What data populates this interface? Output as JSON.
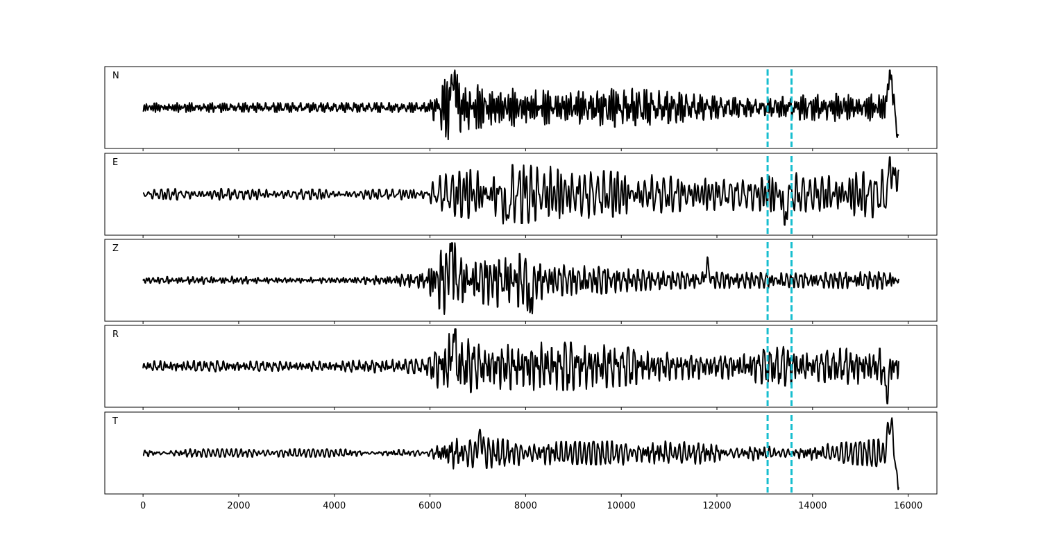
{
  "chart_data": {
    "type": "line",
    "title": "",
    "xlabel": "",
    "ylabel": "",
    "xlim": [
      -800,
      16600
    ],
    "x_ticks": [
      0,
      2000,
      4000,
      6000,
      8000,
      10000,
      12000,
      14000,
      16000
    ],
    "x_tick_labels": [
      "0",
      "2000",
      "4000",
      "6000",
      "8000",
      "10000",
      "12000",
      "14000",
      "16000"
    ],
    "sample_count": 15800,
    "grid": false,
    "legend": "none",
    "trace_color": "#000000",
    "pick_color": "#17becf",
    "picks": [
      13060,
      13560
    ],
    "channels": [
      {
        "name": "N",
        "envelope": [
          [
            0,
            0.12
          ],
          [
            1000,
            0.12
          ],
          [
            2000,
            0.12
          ],
          [
            3000,
            0.12
          ],
          [
            4000,
            0.12
          ],
          [
            5000,
            0.12
          ],
          [
            5900,
            0.12
          ],
          [
            6100,
            0.35
          ],
          [
            6400,
            0.85
          ],
          [
            6800,
            0.6
          ],
          [
            7500,
            0.5
          ],
          [
            8000,
            0.45
          ],
          [
            9000,
            0.4
          ],
          [
            10000,
            0.5
          ],
          [
            11000,
            0.4
          ],
          [
            12000,
            0.28
          ],
          [
            12500,
            0.24
          ],
          [
            13000,
            0.2
          ],
          [
            13500,
            0.3
          ],
          [
            14000,
            0.32
          ],
          [
            14500,
            0.35
          ],
          [
            15000,
            0.32
          ],
          [
            15400,
            0.35
          ],
          [
            15800,
            0.35
          ]
        ],
        "events": [
          [
            6500,
            0.9,
            60
          ],
          [
            15620,
            0.9,
            60
          ],
          [
            15780,
            -0.8,
            40
          ]
        ]
      },
      {
        "name": "E",
        "envelope": [
          [
            0,
            0.1
          ],
          [
            1000,
            0.16
          ],
          [
            2000,
            0.13
          ],
          [
            3000,
            0.13
          ],
          [
            4000,
            0.12
          ],
          [
            5000,
            0.12
          ],
          [
            5900,
            0.15
          ],
          [
            6200,
            0.5
          ],
          [
            6800,
            0.6
          ],
          [
            7500,
            0.75
          ],
          [
            8500,
            0.7
          ],
          [
            9500,
            0.6
          ],
          [
            10500,
            0.5
          ],
          [
            11500,
            0.4
          ],
          [
            12500,
            0.4
          ],
          [
            13000,
            0.42
          ],
          [
            13500,
            0.6
          ],
          [
            14000,
            0.4
          ],
          [
            14500,
            0.5
          ],
          [
            15000,
            0.55
          ],
          [
            15400,
            0.6
          ],
          [
            15800,
            0.7
          ]
        ],
        "events": [
          [
            7600,
            -0.75,
            45
          ],
          [
            13420,
            -0.8,
            40
          ],
          [
            15650,
            0.85,
            60
          ],
          [
            15800,
            0.8,
            40
          ]
        ]
      },
      {
        "name": "Z",
        "envelope": [
          [
            0,
            0.08
          ],
          [
            1000,
            0.1
          ],
          [
            2000,
            0.1
          ],
          [
            3000,
            0.07
          ],
          [
            4000,
            0.08
          ],
          [
            5000,
            0.12
          ],
          [
            5800,
            0.2
          ],
          [
            6200,
            0.8
          ],
          [
            6500,
            0.95
          ],
          [
            6800,
            0.5
          ],
          [
            7500,
            0.7
          ],
          [
            8000,
            0.65
          ],
          [
            8500,
            0.4
          ],
          [
            9500,
            0.35
          ],
          [
            10500,
            0.25
          ],
          [
            11500,
            0.2
          ],
          [
            12500,
            0.2
          ],
          [
            13500,
            0.18
          ],
          [
            14500,
            0.2
          ],
          [
            15500,
            0.22
          ],
          [
            15800,
            0.18
          ]
        ],
        "events": [
          [
            6450,
            0.95,
            50
          ],
          [
            8100,
            -0.8,
            45
          ],
          [
            11800,
            0.4,
            50
          ]
        ]
      },
      {
        "name": "R",
        "envelope": [
          [
            0,
            0.13
          ],
          [
            1000,
            0.14
          ],
          [
            2000,
            0.13
          ],
          [
            3000,
            0.12
          ],
          [
            4000,
            0.13
          ],
          [
            5000,
            0.17
          ],
          [
            5900,
            0.18
          ],
          [
            6200,
            0.6
          ],
          [
            6500,
            0.9
          ],
          [
            7000,
            0.55
          ],
          [
            8000,
            0.6
          ],
          [
            9000,
            0.6
          ],
          [
            10000,
            0.5
          ],
          [
            11000,
            0.35
          ],
          [
            12000,
            0.3
          ],
          [
            12500,
            0.35
          ],
          [
            13000,
            0.45
          ],
          [
            13500,
            0.5
          ],
          [
            14000,
            0.35
          ],
          [
            14500,
            0.45
          ],
          [
            15000,
            0.45
          ],
          [
            15500,
            0.45
          ],
          [
            15800,
            0.4
          ]
        ],
        "events": [
          [
            6500,
            0.95,
            50
          ],
          [
            15550,
            -0.8,
            50
          ]
        ]
      },
      {
        "name": "T",
        "envelope": [
          [
            0,
            0.1
          ],
          [
            1000,
            0.1
          ],
          [
            2000,
            0.1
          ],
          [
            3000,
            0.1
          ],
          [
            4000,
            0.1
          ],
          [
            5000,
            0.08
          ],
          [
            5900,
            0.1
          ],
          [
            6200,
            0.3
          ],
          [
            6500,
            0.45
          ],
          [
            7000,
            0.4
          ],
          [
            8000,
            0.3
          ],
          [
            9000,
            0.28
          ],
          [
            10000,
            0.3
          ],
          [
            11000,
            0.3
          ],
          [
            12000,
            0.26
          ],
          [
            13000,
            0.17
          ],
          [
            13500,
            0.14
          ],
          [
            14000,
            0.2
          ],
          [
            14500,
            0.25
          ],
          [
            15000,
            0.3
          ],
          [
            15400,
            0.35
          ],
          [
            15800,
            0.35
          ]
        ],
        "events": [
          [
            7050,
            0.5,
            50
          ],
          [
            15620,
            0.88,
            60
          ],
          [
            15780,
            -0.85,
            40
          ]
        ]
      }
    ]
  }
}
